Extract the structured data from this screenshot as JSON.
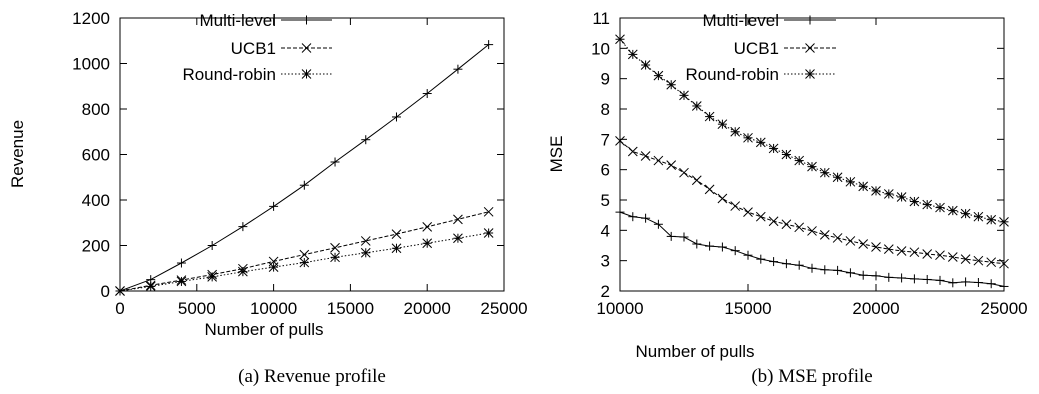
{
  "chart_data": [
    {
      "type": "line",
      "caption": "(a) Revenue profile",
      "xlabel": "Number of pulls",
      "ylabel": "Revenue",
      "xlim": [
        0,
        25000
      ],
      "ylim": [
        0,
        1200
      ],
      "xticks": [
        0,
        5000,
        10000,
        15000,
        20000,
        25000
      ],
      "yticks": [
        0,
        200,
        400,
        600,
        800,
        1000,
        1200
      ],
      "legend_position": "top-right",
      "grid": false,
      "series": [
        {
          "name": "Multi-level",
          "marker": "plus",
          "line": "solid",
          "x": [
            0,
            2000,
            4000,
            6000,
            8000,
            10000,
            12000,
            14000,
            16000,
            18000,
            20000,
            22000,
            24000
          ],
          "y": [
            0,
            50,
            123,
            200,
            283,
            372,
            465,
            567,
            665,
            765,
            868,
            975,
            1083
          ]
        },
        {
          "name": "UCB1",
          "marker": "x",
          "line": "dashed",
          "x": [
            0,
            2000,
            4000,
            6000,
            8000,
            10000,
            12000,
            14000,
            16000,
            18000,
            20000,
            22000,
            24000
          ],
          "y": [
            0,
            25,
            48,
            72,
            98,
            130,
            160,
            190,
            220,
            250,
            282,
            315,
            348
          ]
        },
        {
          "name": "Round-robin",
          "marker": "star",
          "line": "dotted",
          "x": [
            0,
            2000,
            4000,
            6000,
            8000,
            10000,
            12000,
            14000,
            16000,
            18000,
            20000,
            22000,
            24000
          ],
          "y": [
            0,
            20,
            42,
            62,
            85,
            105,
            125,
            148,
            168,
            188,
            210,
            232,
            255
          ]
        }
      ]
    },
    {
      "type": "line",
      "caption": "(b) MSE profile",
      "xlabel": "Number of pulls",
      "ylabel": "MSE",
      "xlim": [
        10000,
        25000
      ],
      "ylim": [
        2,
        11
      ],
      "xticks": [
        10000,
        15000,
        20000,
        25000
      ],
      "yticks": [
        2,
        3,
        4,
        5,
        6,
        7,
        8,
        9,
        10,
        11
      ],
      "legend_position": "top-right",
      "grid": false,
      "series": [
        {
          "name": "Multi-level",
          "marker": "plus",
          "line": "solid",
          "x": [
            10000,
            10500,
            11000,
            11500,
            12000,
            12500,
            13000,
            13500,
            14000,
            14500,
            15000,
            15500,
            16000,
            16500,
            17000,
            17500,
            18000,
            18500,
            19000,
            19500,
            20000,
            20500,
            21000,
            21500,
            22000,
            22500,
            23000,
            23500,
            24000,
            24500,
            25000
          ],
          "y": [
            4.6,
            4.45,
            4.4,
            4.2,
            3.8,
            3.78,
            3.55,
            3.48,
            3.45,
            3.33,
            3.18,
            3.05,
            2.97,
            2.9,
            2.85,
            2.75,
            2.7,
            2.68,
            2.6,
            2.52,
            2.5,
            2.45,
            2.43,
            2.4,
            2.38,
            2.35,
            2.27,
            2.3,
            2.28,
            2.24,
            2.15
          ]
        },
        {
          "name": "UCB1",
          "marker": "x",
          "line": "dashed",
          "x": [
            10000,
            10500,
            11000,
            11500,
            12000,
            12500,
            13000,
            13500,
            14000,
            14500,
            15000,
            15500,
            16000,
            16500,
            17000,
            17500,
            18000,
            18500,
            19000,
            19500,
            20000,
            20500,
            21000,
            21500,
            22000,
            22500,
            23000,
            23500,
            24000,
            24500,
            25000
          ],
          "y": [
            6.95,
            6.6,
            6.45,
            6.3,
            6.15,
            5.9,
            5.65,
            5.35,
            5.05,
            4.8,
            4.6,
            4.45,
            4.3,
            4.2,
            4.1,
            3.98,
            3.85,
            3.75,
            3.65,
            3.55,
            3.45,
            3.38,
            3.32,
            3.28,
            3.22,
            3.18,
            3.12,
            3.05,
            3.0,
            2.95,
            2.9
          ]
        },
        {
          "name": "Round-robin",
          "marker": "star",
          "line": "dotted",
          "x": [
            10000,
            10500,
            11000,
            11500,
            12000,
            12500,
            13000,
            13500,
            14000,
            14500,
            15000,
            15500,
            16000,
            16500,
            17000,
            17500,
            18000,
            18500,
            19000,
            19500,
            20000,
            20500,
            21000,
            21500,
            22000,
            22500,
            23000,
            23500,
            24000,
            24500,
            25000
          ],
          "y": [
            10.3,
            9.8,
            9.45,
            9.1,
            8.8,
            8.45,
            8.1,
            7.75,
            7.5,
            7.25,
            7.05,
            6.9,
            6.7,
            6.5,
            6.3,
            6.1,
            5.9,
            5.75,
            5.6,
            5.45,
            5.3,
            5.2,
            5.1,
            4.95,
            4.85,
            4.75,
            4.65,
            4.55,
            4.45,
            4.35,
            4.28
          ]
        }
      ]
    }
  ]
}
